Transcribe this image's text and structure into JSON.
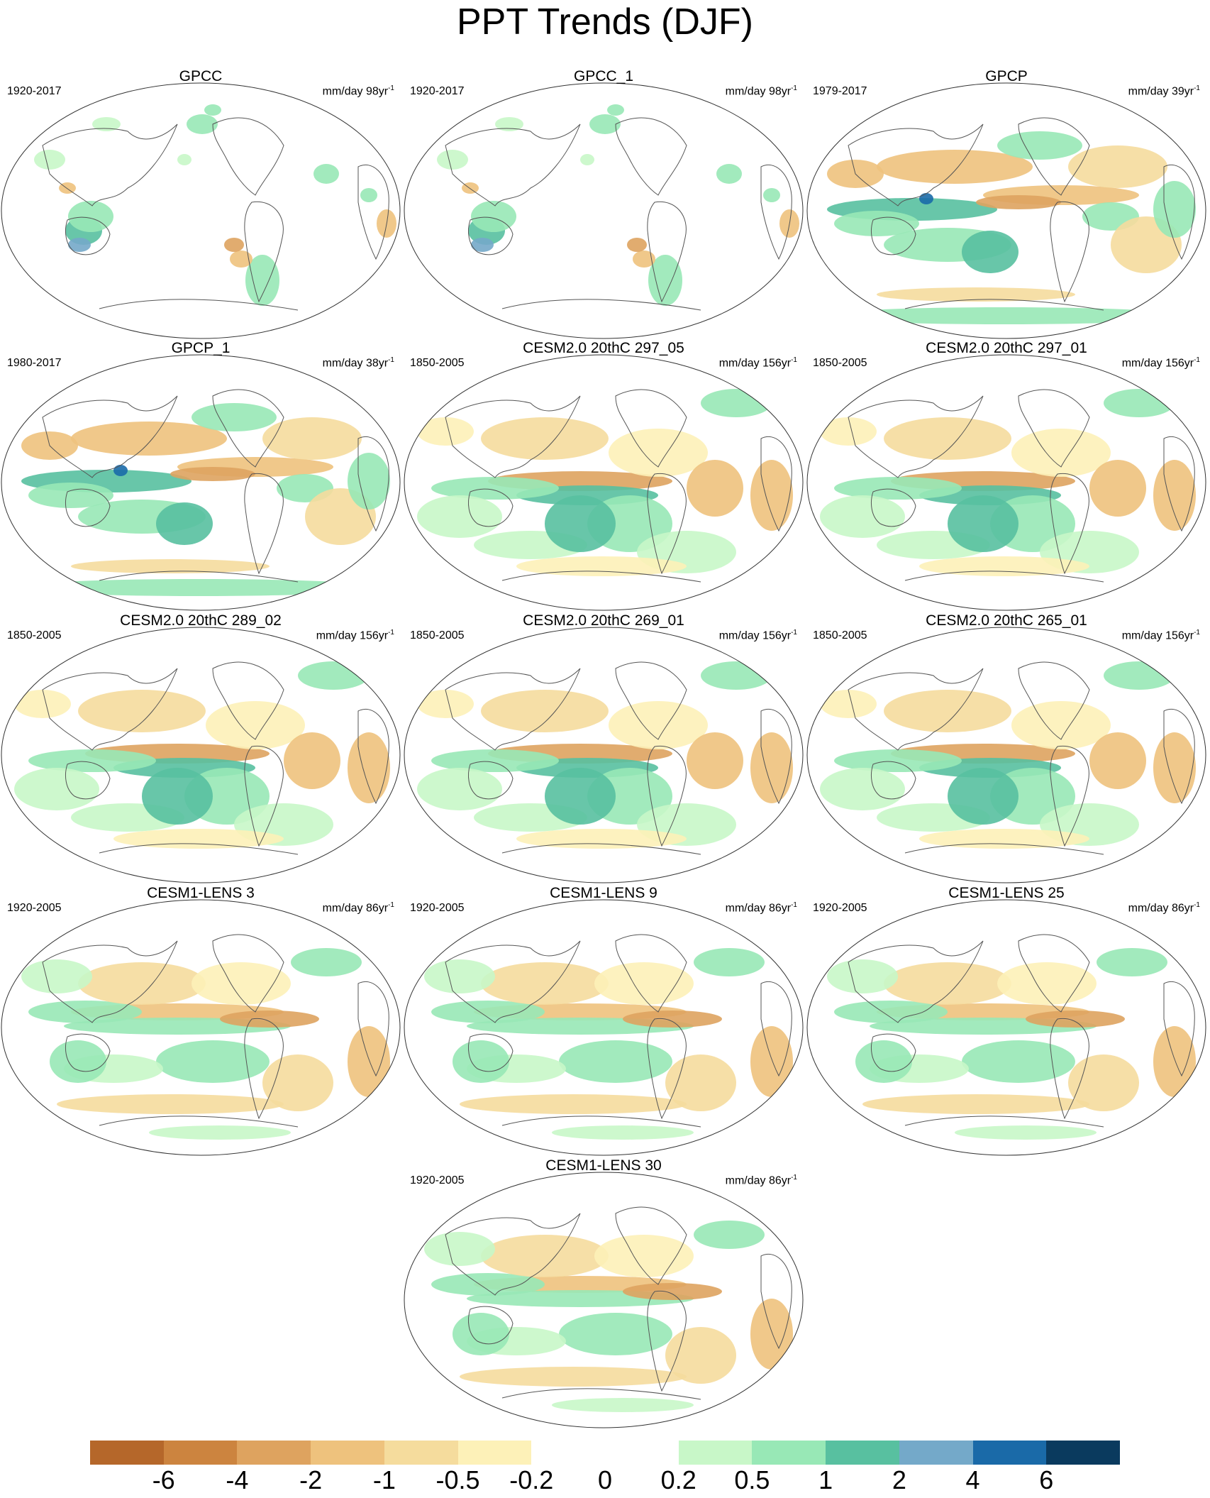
{
  "title": "PPT Trends (DJF)",
  "panels": [
    {
      "title": "GPCC",
      "period": "1920-2017",
      "units": "mm/day 98yr",
      "units_sup": "-1",
      "pattern": "obs"
    },
    {
      "title": "GPCC_1",
      "period": "1920-2017",
      "units": "mm/day 98yr",
      "units_sup": "-1",
      "pattern": "obs"
    },
    {
      "title": "GPCP",
      "period": "1979-2017",
      "units": "mm/day 39yr",
      "units_sup": "-1",
      "pattern": "sat"
    },
    {
      "title": "GPCP_1",
      "period": "1980-2017",
      "units": "mm/day 38yr",
      "units_sup": "-1",
      "pattern": "sat"
    },
    {
      "title": "CESM2.0 20thC 297_05",
      "period": "1850-2005",
      "units": "mm/day 156yr",
      "units_sup": "-1",
      "pattern": "model"
    },
    {
      "title": "CESM2.0 20thC 297_01",
      "period": "1850-2005",
      "units": "mm/day 156yr",
      "units_sup": "-1",
      "pattern": "model"
    },
    {
      "title": "CESM2.0 20thC 289_02",
      "period": "1850-2005",
      "units": "mm/day 156yr",
      "units_sup": "-1",
      "pattern": "model"
    },
    {
      "title": "CESM2.0 20thC 269_01",
      "period": "1850-2005",
      "units": "mm/day 156yr",
      "units_sup": "-1",
      "pattern": "model"
    },
    {
      "title": "CESM2.0 20thC 265_01",
      "period": "1850-2005",
      "units": "mm/day 156yr",
      "units_sup": "-1",
      "pattern": "model"
    },
    {
      "title": "CESM1-LENS 3",
      "period": "1920-2005",
      "units": "mm/day 86yr",
      "units_sup": "-1",
      "pattern": "lens"
    },
    {
      "title": "CESM1-LENS 9",
      "period": "1920-2005",
      "units": "mm/day 86yr",
      "units_sup": "-1",
      "pattern": "lens"
    },
    {
      "title": "CESM1-LENS 25",
      "period": "1920-2005",
      "units": "mm/day 86yr",
      "units_sup": "-1",
      "pattern": "lens"
    },
    {
      "title": "CESM1-LENS 30",
      "period": "1920-2005",
      "units": "mm/day 86yr",
      "units_sup": "-1",
      "pattern": "lens"
    }
  ],
  "colorbar": {
    "colors": [
      "#b5672a",
      "#cc843f",
      "#dea35f",
      "#eec27d",
      "#f5dc9d",
      "#fdf1b8",
      "#ffffff",
      "#ffffff",
      "#c8f7c8",
      "#98e8b6",
      "#58c0a0",
      "#74a9c9",
      "#1a6aa8",
      "#0a3a5e"
    ],
    "labels": [
      "-6",
      "-4",
      "-2",
      "-1",
      "-0.5",
      "-0.2",
      "0",
      "0.2",
      "0.5",
      "1",
      "2",
      "4",
      "6"
    ]
  }
}
